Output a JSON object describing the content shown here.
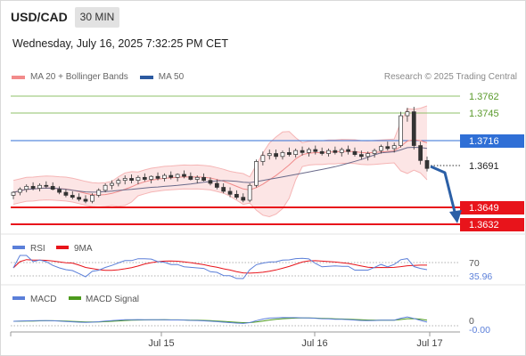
{
  "header": {
    "symbol": "USD/CAD",
    "timeframe": "30 MIN",
    "datetime": "Wednesday, July 16, 2025 7:32:25 PM CET"
  },
  "legend": {
    "items": [
      {
        "label": "MA 20 + Bollinger Bands",
        "color": "#f28b8b"
      },
      {
        "label": "MA 50",
        "color": "#2c5aa0"
      }
    ],
    "credit": "Research © 2025 Trading Central"
  },
  "price_levels": {
    "resistance": [
      {
        "label": "1.3762",
        "value": 1.3762,
        "color": "#8fc06a"
      },
      {
        "label": "1.3745",
        "value": 1.3745,
        "color": "#8fc06a"
      }
    ],
    "pivot": {
      "label": "1.3716",
      "value": 1.3716,
      "color": "#2f6fd6"
    },
    "current": {
      "label": "1.3691",
      "value": 1.3691
    },
    "support": [
      {
        "label": "1.3649",
        "value": 1.3649,
        "color": "#e8141b"
      },
      {
        "label": "1.3632",
        "value": 1.3632,
        "color": "#e8141b"
      }
    ]
  },
  "rsi_panel": {
    "legend": [
      {
        "label": "RSI",
        "color": "#5b7fd9"
      },
      {
        "label": "9MA",
        "color": "#e8141b"
      }
    ],
    "level_label": "70",
    "value_label": "35.96"
  },
  "macd_panel": {
    "legend": [
      {
        "label": "MACD",
        "color": "#5b7fd9"
      },
      {
        "label": "MACD Signal",
        "color": "#4c9a1c"
      }
    ],
    "level_label": "0",
    "value_label": "-0.00"
  },
  "x_axis": {
    "labels": [
      "Jul 15",
      "Jul 16",
      "Jul 17"
    ]
  },
  "chart_data": {
    "type": "candlestick",
    "ylim": [
      1.3625,
      1.377
    ],
    "candles": [
      [
        1.3664,
        1.3668,
        1.366,
        1.3667
      ],
      [
        1.3667,
        1.3672,
        1.3664,
        1.367
      ],
      [
        1.367,
        1.3675,
        1.3667,
        1.3673
      ],
      [
        1.3673,
        1.3677,
        1.3669,
        1.3671
      ],
      [
        1.3671,
        1.3676,
        1.3668,
        1.3674
      ],
      [
        1.3674,
        1.3678,
        1.3671,
        1.3673
      ],
      [
        1.3673,
        1.3677,
        1.3669,
        1.367
      ],
      [
        1.367,
        1.3673,
        1.3665,
        1.3667
      ],
      [
        1.3667,
        1.367,
        1.3662,
        1.3664
      ],
      [
        1.3664,
        1.3668,
        1.366,
        1.3662
      ],
      [
        1.3662,
        1.3666,
        1.3658,
        1.366
      ],
      [
        1.366,
        1.3664,
        1.3656,
        1.3658
      ],
      [
        1.3658,
        1.3666,
        1.3656,
        1.3664
      ],
      [
        1.3664,
        1.3671,
        1.3662,
        1.3669
      ],
      [
        1.3669,
        1.3676,
        1.3667,
        1.3674
      ],
      [
        1.3674,
        1.3679,
        1.367,
        1.3676
      ],
      [
        1.3676,
        1.3681,
        1.3673,
        1.3679
      ],
      [
        1.3679,
        1.3684,
        1.3675,
        1.3681
      ],
      [
        1.3681,
        1.3685,
        1.3676,
        1.3679
      ],
      [
        1.3679,
        1.3684,
        1.3675,
        1.3682
      ],
      [
        1.3682,
        1.3686,
        1.3678,
        1.368
      ],
      [
        1.368,
        1.3684,
        1.3676,
        1.3683
      ],
      [
        1.3683,
        1.3687,
        1.3679,
        1.3681
      ],
      [
        1.3681,
        1.3686,
        1.3678,
        1.3684
      ],
      [
        1.3684,
        1.3688,
        1.368,
        1.3682
      ],
      [
        1.3682,
        1.3686,
        1.3678,
        1.3685
      ],
      [
        1.3685,
        1.3689,
        1.3681,
        1.3683
      ],
      [
        1.3683,
        1.3687,
        1.3679,
        1.368
      ],
      [
        1.368,
        1.3684,
        1.3676,
        1.3682
      ],
      [
        1.3682,
        1.3686,
        1.3678,
        1.3679
      ],
      [
        1.3679,
        1.3682,
        1.3674,
        1.3676
      ],
      [
        1.3676,
        1.368,
        1.367,
        1.3672
      ],
      [
        1.3672,
        1.3676,
        1.3666,
        1.3668
      ],
      [
        1.3668,
        1.3672,
        1.3662,
        1.3665
      ],
      [
        1.3665,
        1.3669,
        1.366,
        1.3662
      ],
      [
        1.3662,
        1.3666,
        1.3657,
        1.3659
      ],
      [
        1.3659,
        1.3676,
        1.3657,
        1.3674
      ],
      [
        1.3674,
        1.37,
        1.3672,
        1.3698
      ],
      [
        1.3698,
        1.3708,
        1.3694,
        1.3704
      ],
      [
        1.3704,
        1.371,
        1.37,
        1.3706
      ],
      [
        1.3706,
        1.371,
        1.37,
        1.3703
      ],
      [
        1.3703,
        1.3709,
        1.37,
        1.3707
      ],
      [
        1.3707,
        1.3712,
        1.3703,
        1.3705
      ],
      [
        1.3705,
        1.3711,
        1.3702,
        1.3709
      ],
      [
        1.3709,
        1.3713,
        1.3704,
        1.3707
      ],
      [
        1.3707,
        1.3712,
        1.3703,
        1.371
      ],
      [
        1.371,
        1.3714,
        1.3705,
        1.3708
      ],
      [
        1.3708,
        1.3712,
        1.3704,
        1.3706
      ],
      [
        1.3706,
        1.3711,
        1.3703,
        1.3709
      ],
      [
        1.3709,
        1.3713,
        1.3705,
        1.3707
      ],
      [
        1.3707,
        1.3712,
        1.3703,
        1.371
      ],
      [
        1.371,
        1.3714,
        1.3705,
        1.3708
      ],
      [
        1.3708,
        1.3712,
        1.3703,
        1.3705
      ],
      [
        1.3705,
        1.3709,
        1.37,
        1.3703
      ],
      [
        1.3703,
        1.3708,
        1.3699,
        1.3706
      ],
      [
        1.3706,
        1.3711,
        1.3702,
        1.3709
      ],
      [
        1.3709,
        1.3715,
        1.3706,
        1.3713
      ],
      [
        1.3713,
        1.3718,
        1.3709,
        1.3711
      ],
      [
        1.3711,
        1.3717,
        1.3707,
        1.3714
      ],
      [
        1.3714,
        1.3748,
        1.3712,
        1.3744
      ],
      [
        1.3744,
        1.3752,
        1.3738,
        1.3748
      ],
      [
        1.3748,
        1.3753,
        1.371,
        1.3714
      ],
      [
        1.3714,
        1.3718,
        1.3695,
        1.3699
      ],
      [
        1.3699,
        1.3703,
        1.3688,
        1.3691
      ]
    ]
  }
}
